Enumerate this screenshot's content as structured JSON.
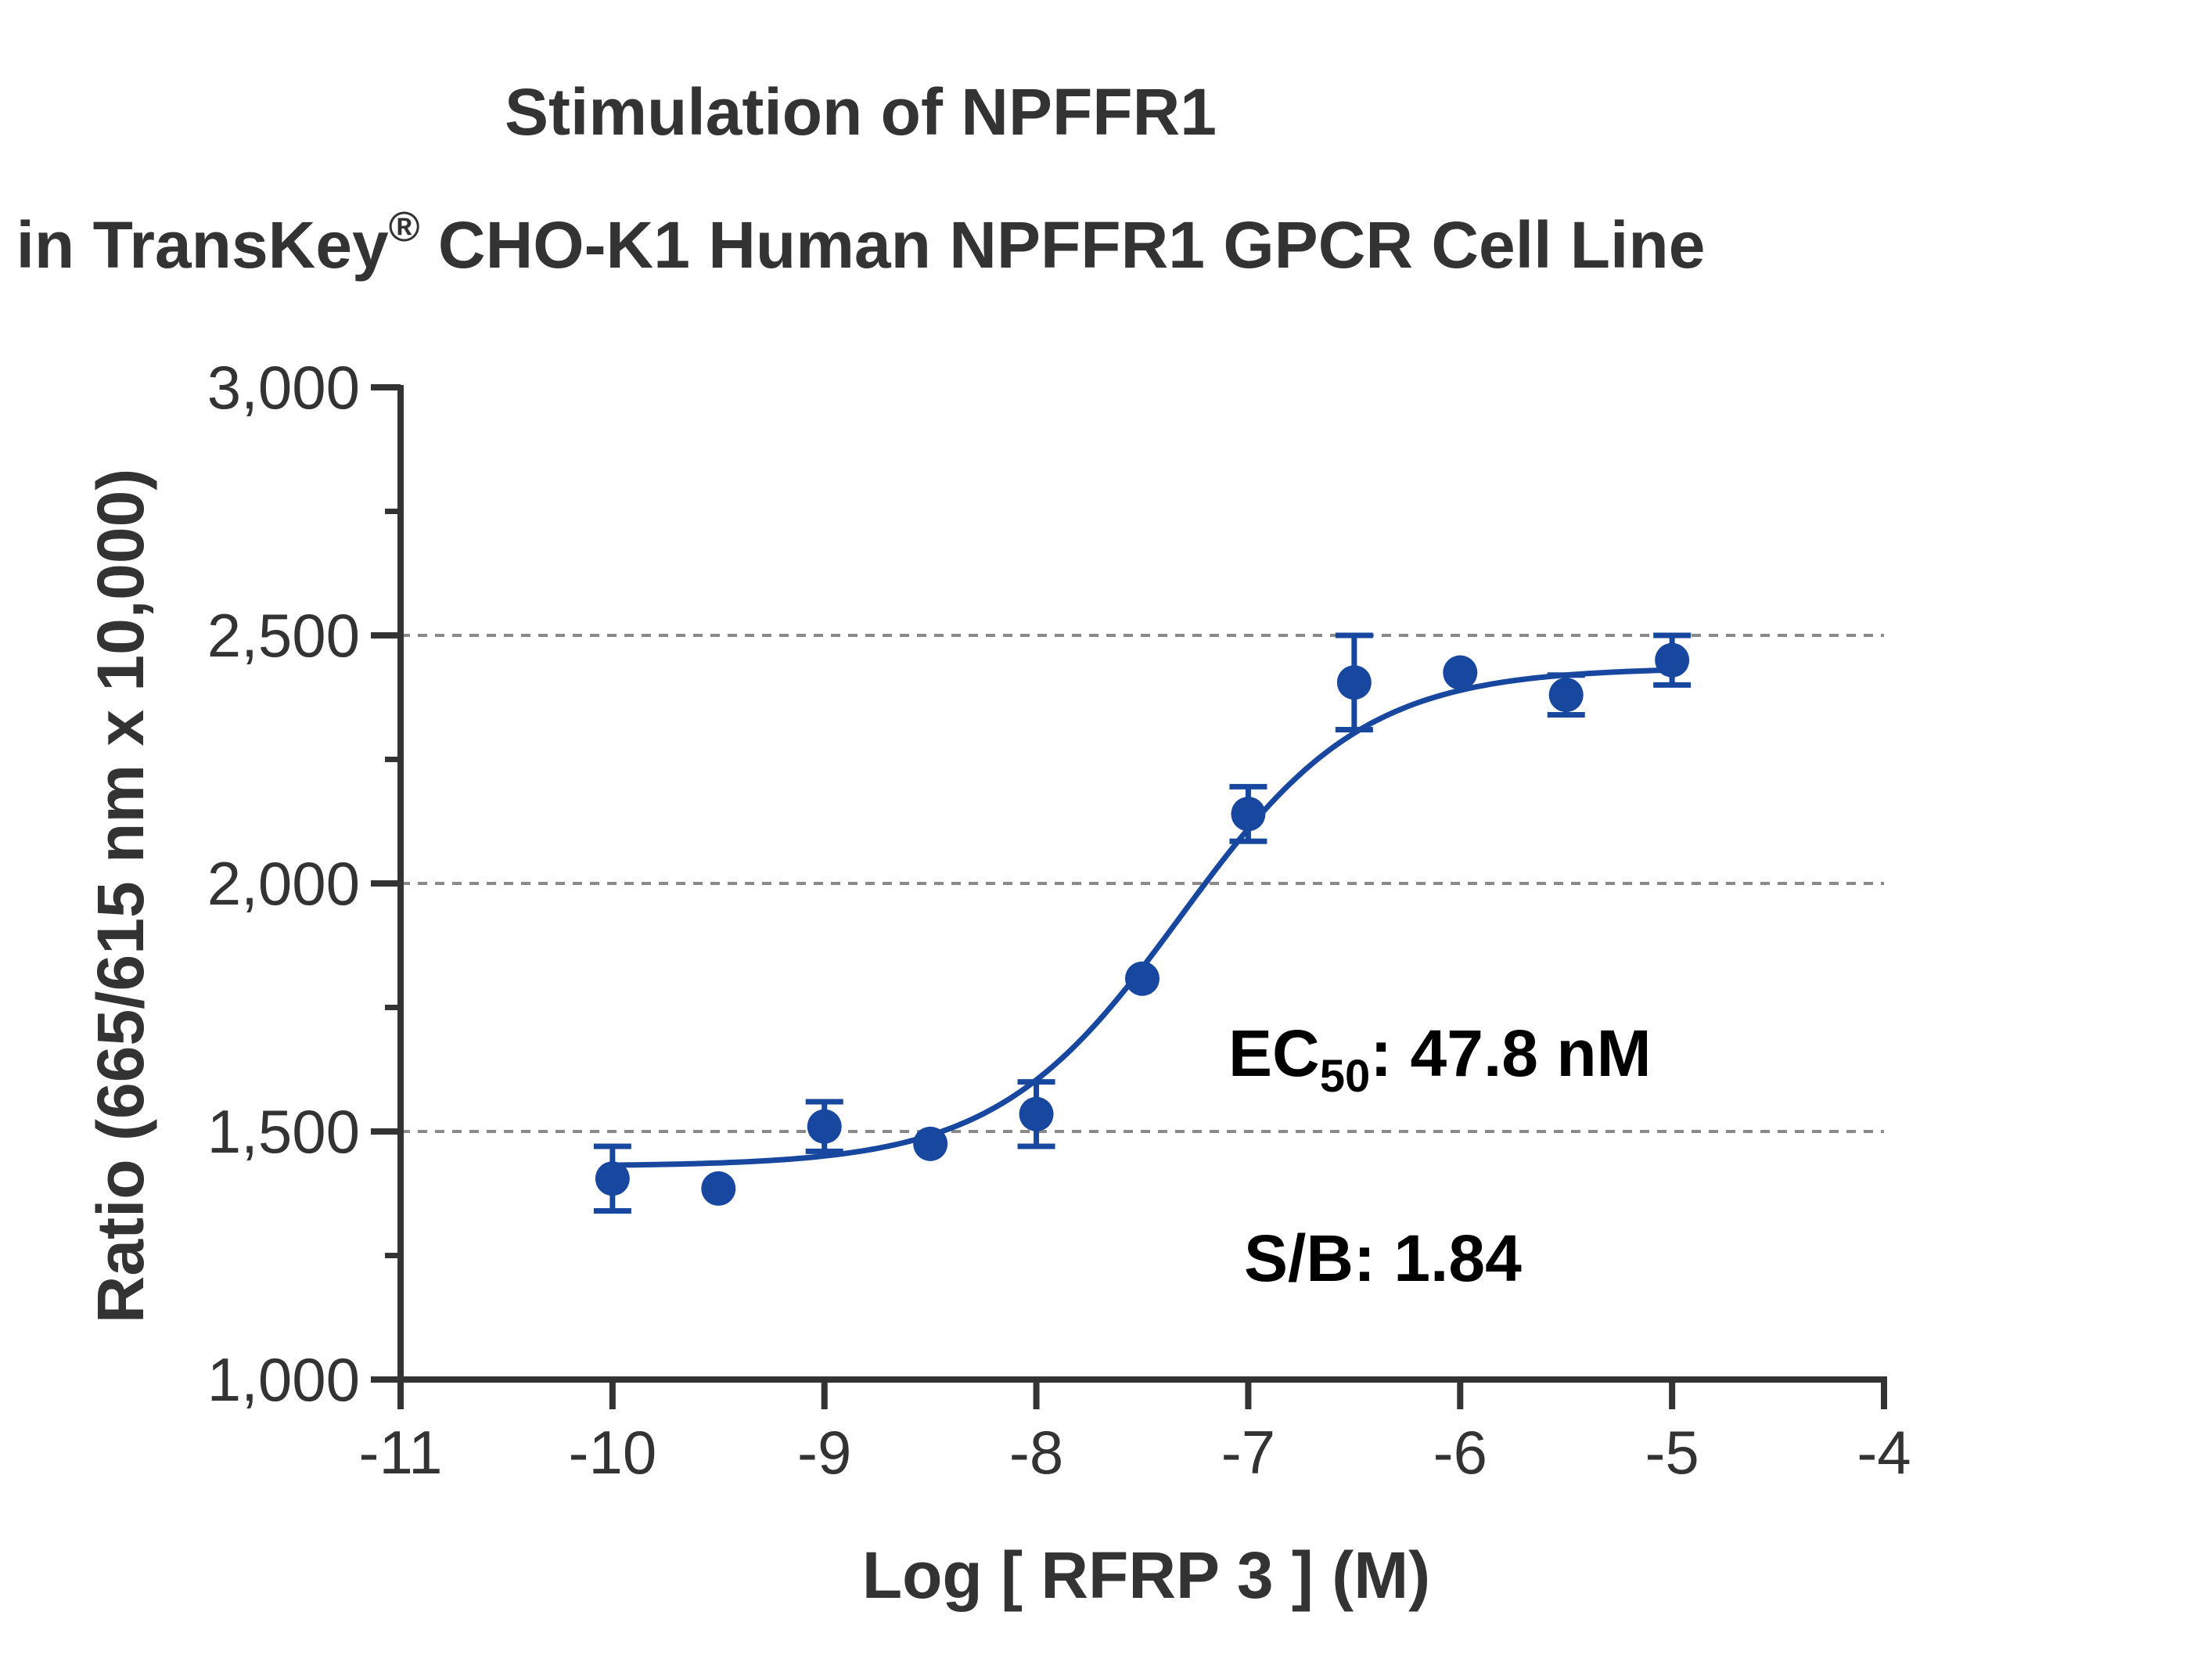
{
  "chart_data": {
    "type": "scatter",
    "title_line1": "Stimulation of  NPFFR1",
    "title_line2_pre": "in TransKey",
    "title_line2_sup": "®",
    "title_line2_post": " CHO-K1 Human NPFFR1 GPCR Cell Line",
    "xlabel": "Log [ RFRP 3 ]  (M)",
    "ylabel": "Ratio (665/615 nm x 10,000)",
    "xlim": [
      -11,
      -4
    ],
    "ylim": [
      1000,
      3000
    ],
    "x_ticks": [
      -11,
      -10,
      -9,
      -8,
      -7,
      -6,
      -5,
      -4
    ],
    "x_tick_labels": [
      "-11",
      "-10",
      "-9",
      "-8",
      "-7",
      "-6",
      "-5",
      "-4"
    ],
    "y_ticks": [
      1000,
      1500,
      2000,
      2500,
      3000
    ],
    "y_tick_labels": [
      "1,000",
      "1,500",
      "2,000",
      "2,500",
      "3,000"
    ],
    "y_minor_ticks": [
      1250,
      1750,
      2250,
      2750
    ],
    "grid_y": [
      1500,
      2000,
      2500
    ],
    "color": "#17479e",
    "series": [
      {
        "x": [
          -10,
          -9.5,
          -9,
          -8.5,
          -8,
          -7.5,
          -7,
          -6.5,
          -6,
          -5.5,
          -5
        ],
        "y": [
          1405,
          1385,
          1510,
          1475,
          1535,
          1808,
          2140,
          2405,
          2425,
          2380,
          2450
        ],
        "error": [
          65,
          0,
          50,
          0,
          65,
          0,
          55,
          95,
          0,
          40,
          50
        ]
      }
    ],
    "fit": {
      "bottom": 1430,
      "top": 2435,
      "log_ec50": -7.3206,
      "hill_slope": 1.0
    },
    "annotations": {
      "ec50_pre": "EC",
      "ec50_sub": "50",
      "ec50_post": ": 47.8 nM",
      "sb": "S/B: 1.84"
    }
  }
}
